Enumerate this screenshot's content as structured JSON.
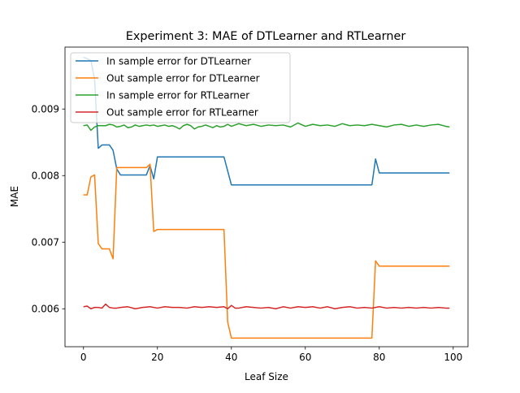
{
  "chart_data": {
    "type": "line",
    "title": "Experiment 3: MAE of DTLearner and RTLearner",
    "xlabel": "Leaf Size",
    "ylabel": "MAE",
    "xlim": [
      -5.0,
      104.0
    ],
    "ylim": [
      0.00543,
      0.00993
    ],
    "xticks": [
      0,
      20,
      40,
      60,
      80,
      100
    ],
    "xtick_labels": [
      "0",
      "20",
      "40",
      "60",
      "80",
      "100"
    ],
    "yticks": [
      0.006,
      0.007,
      0.008,
      0.009
    ],
    "ytick_labels": [
      "0.006",
      "0.007",
      "0.008",
      "0.009"
    ],
    "grid": false,
    "legend_position": "top-left",
    "series": [
      {
        "name": "In sample error for DTLearner",
        "color": "#1f77b4",
        "points": [
          [
            0,
            0.00978
          ],
          [
            2,
            0.00973
          ],
          [
            3,
            0.00945
          ],
          [
            4,
            0.00841
          ],
          [
            5,
            0.00846
          ],
          [
            7,
            0.00846
          ],
          [
            8,
            0.00838
          ],
          [
            9,
            0.0081
          ],
          [
            10,
            0.00801
          ],
          [
            17,
            0.00801
          ],
          [
            18,
            0.00815
          ],
          [
            19,
            0.00795
          ],
          [
            20,
            0.00828
          ],
          [
            38,
            0.00828
          ],
          [
            40,
            0.00786
          ],
          [
            78,
            0.00786
          ],
          [
            79,
            0.00825
          ],
          [
            80,
            0.00804
          ],
          [
            99,
            0.00804
          ]
        ]
      },
      {
        "name": "Out sample error for DTLearner",
        "color": "#ff7f0e",
        "points": [
          [
            0,
            0.00771
          ],
          [
            1,
            0.00771
          ],
          [
            2,
            0.00798
          ],
          [
            3,
            0.00801
          ],
          [
            4,
            0.00698
          ],
          [
            5,
            0.0069
          ],
          [
            7,
            0.0069
          ],
          [
            8,
            0.00675
          ],
          [
            9,
            0.00812
          ],
          [
            10,
            0.00812
          ],
          [
            17,
            0.00812
          ],
          [
            18,
            0.00817
          ],
          [
            19,
            0.00716
          ],
          [
            20,
            0.00719
          ],
          [
            38,
            0.00719
          ],
          [
            39,
            0.0058
          ],
          [
            40,
            0.00556
          ],
          [
            78,
            0.00556
          ],
          [
            79,
            0.00672
          ],
          [
            80,
            0.00664
          ],
          [
            99,
            0.00664
          ]
        ]
      },
      {
        "name": "In sample error for RTLearner",
        "color": "#2ca02c",
        "points": [
          [
            0,
            0.00875
          ],
          [
            1,
            0.00876
          ],
          [
            2,
            0.00868
          ],
          [
            3,
            0.00873
          ],
          [
            4,
            0.00875
          ],
          [
            6,
            0.00875
          ],
          [
            7,
            0.00877
          ],
          [
            8,
            0.00876
          ],
          [
            9,
            0.00873
          ],
          [
            10,
            0.00874
          ],
          [
            11,
            0.00876
          ],
          [
            12,
            0.00872
          ],
          [
            13,
            0.00873
          ],
          [
            14,
            0.00876
          ],
          [
            15,
            0.00874
          ],
          [
            16,
            0.00875
          ],
          [
            17,
            0.00876
          ],
          [
            18,
            0.00875
          ],
          [
            19,
            0.00876
          ],
          [
            20,
            0.00874
          ],
          [
            21,
            0.00875
          ],
          [
            22,
            0.00876
          ],
          [
            23,
            0.00874
          ],
          [
            24,
            0.00875
          ],
          [
            25,
            0.00873
          ],
          [
            26,
            0.0087
          ],
          [
            27,
            0.00875
          ],
          [
            28,
            0.00877
          ],
          [
            29,
            0.00875
          ],
          [
            30,
            0.0087
          ],
          [
            31,
            0.00873
          ],
          [
            32,
            0.00874
          ],
          [
            33,
            0.00876
          ],
          [
            34,
            0.00874
          ],
          [
            35,
            0.00872
          ],
          [
            36,
            0.00875
          ],
          [
            37,
            0.00873
          ],
          [
            38,
            0.00874
          ],
          [
            39,
            0.00877
          ],
          [
            40,
            0.00874
          ],
          [
            42,
            0.00878
          ],
          [
            44,
            0.00875
          ],
          [
            46,
            0.00877
          ],
          [
            48,
            0.00874
          ],
          [
            50,
            0.00876
          ],
          [
            52,
            0.00875
          ],
          [
            54,
            0.00876
          ],
          [
            56,
            0.00873
          ],
          [
            58,
            0.00879
          ],
          [
            60,
            0.00874
          ],
          [
            62,
            0.00877
          ],
          [
            64,
            0.00875
          ],
          [
            66,
            0.00876
          ],
          [
            68,
            0.00874
          ],
          [
            70,
            0.00878
          ],
          [
            72,
            0.00875
          ],
          [
            74,
            0.00876
          ],
          [
            76,
            0.00875
          ],
          [
            78,
            0.00877
          ],
          [
            80,
            0.00875
          ],
          [
            82,
            0.00873
          ],
          [
            84,
            0.00876
          ],
          [
            86,
            0.00877
          ],
          [
            88,
            0.00874
          ],
          [
            90,
            0.00876
          ],
          [
            92,
            0.00874
          ],
          [
            94,
            0.00876
          ],
          [
            96,
            0.00877
          ],
          [
            98,
            0.00874
          ],
          [
            99,
            0.00873
          ]
        ]
      },
      {
        "name": "Out sample error for RTLearner",
        "color": "#d62728",
        "points": [
          [
            0,
            0.00603
          ],
          [
            1,
            0.00604
          ],
          [
            2,
            0.006
          ],
          [
            3,
            0.00602
          ],
          [
            4,
            0.00602
          ],
          [
            5,
            0.00601
          ],
          [
            6,
            0.00607
          ],
          [
            7,
            0.00602
          ],
          [
            8,
            0.00601
          ],
          [
            9,
            0.00601
          ],
          [
            10,
            0.00602
          ],
          [
            12,
            0.00603
          ],
          [
            14,
            0.006
          ],
          [
            16,
            0.00602
          ],
          [
            18,
            0.00603
          ],
          [
            20,
            0.00601
          ],
          [
            22,
            0.00603
          ],
          [
            24,
            0.00602
          ],
          [
            26,
            0.00602
          ],
          [
            28,
            0.00601
          ],
          [
            30,
            0.00603
          ],
          [
            32,
            0.00602
          ],
          [
            34,
            0.00603
          ],
          [
            36,
            0.00602
          ],
          [
            38,
            0.00603
          ],
          [
            39,
            0.006
          ],
          [
            40,
            0.00605
          ],
          [
            41,
            0.00601
          ],
          [
            42,
            0.00601
          ],
          [
            44,
            0.00603
          ],
          [
            46,
            0.00602
          ],
          [
            48,
            0.00601
          ],
          [
            50,
            0.00602
          ],
          [
            52,
            0.006
          ],
          [
            54,
            0.00603
          ],
          [
            56,
            0.00601
          ],
          [
            58,
            0.00603
          ],
          [
            60,
            0.00602
          ],
          [
            62,
            0.00603
          ],
          [
            64,
            0.00601
          ],
          [
            66,
            0.00603
          ],
          [
            68,
            0.006
          ],
          [
            70,
            0.00602
          ],
          [
            72,
            0.00603
          ],
          [
            74,
            0.00601
          ],
          [
            76,
            0.00602
          ],
          [
            78,
            0.00601
          ],
          [
            80,
            0.00603
          ],
          [
            82,
            0.00601
          ],
          [
            84,
            0.00602
          ],
          [
            86,
            0.00601
          ],
          [
            88,
            0.00602
          ],
          [
            90,
            0.00601
          ],
          [
            92,
            0.00602
          ],
          [
            94,
            0.00601
          ],
          [
            96,
            0.00602
          ],
          [
            98,
            0.00601
          ],
          [
            99,
            0.00601
          ]
        ]
      }
    ]
  }
}
